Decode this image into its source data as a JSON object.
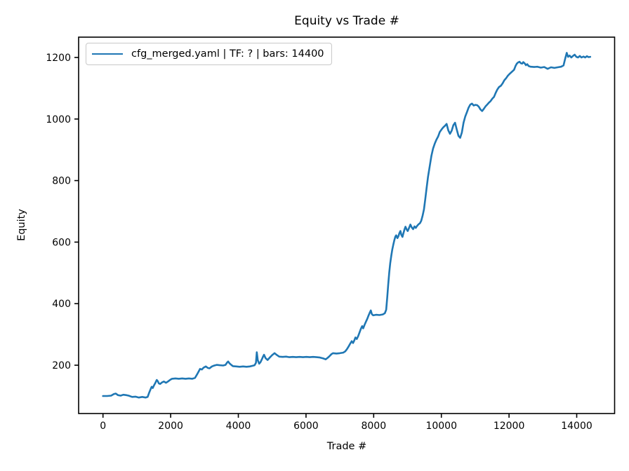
{
  "figure": {
    "background": "#ffffff",
    "text_color": "#000000"
  },
  "chart_data": {
    "type": "line",
    "title": "Equity vs Trade #",
    "xlabel": "Trade #",
    "ylabel": "Equity",
    "legend_position": "upper left",
    "grid": false,
    "legend": [
      {
        "label": "cfg_merged.yaml | TF: ? | bars: 14400",
        "color": "#1f77b4"
      }
    ],
    "xlim": [
      -720,
      15120
    ],
    "ylim": [
      43,
      1266
    ],
    "xticks": [
      0,
      2000,
      4000,
      6000,
      8000,
      10000,
      12000,
      14000
    ],
    "yticks": [
      200,
      400,
      600,
      800,
      1000,
      1200
    ],
    "series": [
      {
        "name": "cfg_merged.yaml | TF: ? | bars: 14400",
        "color": "#1f77b4",
        "points": [
          [
            0,
            100
          ],
          [
            120,
            100
          ],
          [
            240,
            101
          ],
          [
            320,
            106
          ],
          [
            380,
            108
          ],
          [
            440,
            103
          ],
          [
            520,
            101
          ],
          [
            600,
            104
          ],
          [
            680,
            103
          ],
          [
            760,
            101
          ],
          [
            860,
            97
          ],
          [
            960,
            98
          ],
          [
            1060,
            95
          ],
          [
            1160,
            97
          ],
          [
            1260,
            95
          ],
          [
            1320,
            97
          ],
          [
            1370,
            112
          ],
          [
            1410,
            123
          ],
          [
            1440,
            130
          ],
          [
            1470,
            126
          ],
          [
            1510,
            135
          ],
          [
            1550,
            143
          ],
          [
            1590,
            152
          ],
          [
            1620,
            148
          ],
          [
            1650,
            141
          ],
          [
            1690,
            139
          ],
          [
            1740,
            144
          ],
          [
            1800,
            147
          ],
          [
            1860,
            143
          ],
          [
            1920,
            147
          ],
          [
            1980,
            152
          ],
          [
            2040,
            156
          ],
          [
            2140,
            157
          ],
          [
            2240,
            156
          ],
          [
            2340,
            157
          ],
          [
            2440,
            156
          ],
          [
            2540,
            157
          ],
          [
            2640,
            156
          ],
          [
            2720,
            159
          ],
          [
            2780,
            170
          ],
          [
            2820,
            178
          ],
          [
            2870,
            188
          ],
          [
            2920,
            186
          ],
          [
            2970,
            192
          ],
          [
            3040,
            196
          ],
          [
            3100,
            191
          ],
          [
            3150,
            190
          ],
          [
            3220,
            196
          ],
          [
            3290,
            199
          ],
          [
            3360,
            201
          ],
          [
            3450,
            200
          ],
          [
            3550,
            199
          ],
          [
            3620,
            201
          ],
          [
            3670,
            209
          ],
          [
            3700,
            212
          ],
          [
            3740,
            206
          ],
          [
            3790,
            201
          ],
          [
            3840,
            197
          ],
          [
            3940,
            196
          ],
          [
            4040,
            195
          ],
          [
            4140,
            196
          ],
          [
            4240,
            195
          ],
          [
            4340,
            196
          ],
          [
            4420,
            198
          ],
          [
            4480,
            200
          ],
          [
            4520,
            208
          ],
          [
            4545,
            242
          ],
          [
            4575,
            216
          ],
          [
            4615,
            205
          ],
          [
            4655,
            210
          ],
          [
            4695,
            219
          ],
          [
            4725,
            227
          ],
          [
            4760,
            234
          ],
          [
            4805,
            223
          ],
          [
            4865,
            217
          ],
          [
            4930,
            225
          ],
          [
            5000,
            233
          ],
          [
            5070,
            239
          ],
          [
            5140,
            233
          ],
          [
            5210,
            228
          ],
          [
            5310,
            227
          ],
          [
            5410,
            228
          ],
          [
            5510,
            226
          ],
          [
            5610,
            227
          ],
          [
            5710,
            226
          ],
          [
            5810,
            227
          ],
          [
            5910,
            226
          ],
          [
            6010,
            227
          ],
          [
            6110,
            226
          ],
          [
            6210,
            227
          ],
          [
            6310,
            226
          ],
          [
            6410,
            225
          ],
          [
            6510,
            222
          ],
          [
            6580,
            219
          ],
          [
            6640,
            224
          ],
          [
            6700,
            230
          ],
          [
            6750,
            236
          ],
          [
            6800,
            239
          ],
          [
            6900,
            238
          ],
          [
            7000,
            239
          ],
          [
            7100,
            241
          ],
          [
            7160,
            245
          ],
          [
            7210,
            252
          ],
          [
            7260,
            261
          ],
          [
            7310,
            271
          ],
          [
            7350,
            278
          ],
          [
            7390,
            272
          ],
          [
            7430,
            281
          ],
          [
            7460,
            290
          ],
          [
            7500,
            285
          ],
          [
            7540,
            294
          ],
          [
            7580,
            306
          ],
          [
            7620,
            318
          ],
          [
            7660,
            327
          ],
          [
            7690,
            320
          ],
          [
            7730,
            331
          ],
          [
            7770,
            341
          ],
          [
            7810,
            351
          ],
          [
            7850,
            362
          ],
          [
            7890,
            372
          ],
          [
            7915,
            378
          ],
          [
            7945,
            366
          ],
          [
            7985,
            362
          ],
          [
            8070,
            364
          ],
          [
            8170,
            363
          ],
          [
            8270,
            365
          ],
          [
            8330,
            369
          ],
          [
            8370,
            380
          ],
          [
            8400,
            420
          ],
          [
            8430,
            462
          ],
          [
            8460,
            502
          ],
          [
            8490,
            532
          ],
          [
            8520,
            556
          ],
          [
            8550,
            576
          ],
          [
            8580,
            592
          ],
          [
            8610,
            606
          ],
          [
            8640,
            618
          ],
          [
            8665,
            622
          ],
          [
            8700,
            613
          ],
          [
            8730,
            619
          ],
          [
            8760,
            629
          ],
          [
            8790,
            636
          ],
          [
            8820,
            623
          ],
          [
            8850,
            617
          ],
          [
            8880,
            629
          ],
          [
            8910,
            641
          ],
          [
            8940,
            650
          ],
          [
            8975,
            641
          ],
          [
            9005,
            636
          ],
          [
            9045,
            646
          ],
          [
            9085,
            657
          ],
          [
            9125,
            648
          ],
          [
            9165,
            642
          ],
          [
            9205,
            651
          ],
          [
            9245,
            646
          ],
          [
            9285,
            653
          ],
          [
            9325,
            658
          ],
          [
            9365,
            661
          ],
          [
            9405,
            669
          ],
          [
            9445,
            686
          ],
          [
            9485,
            706
          ],
          [
            9525,
            740
          ],
          [
            9565,
            776
          ],
          [
            9605,
            812
          ],
          [
            9655,
            846
          ],
          [
            9705,
            880
          ],
          [
            9755,
            904
          ],
          [
            9805,
            920
          ],
          [
            9855,
            933
          ],
          [
            9905,
            943
          ],
          [
            9955,
            958
          ],
          [
            10005,
            966
          ],
          [
            10055,
            973
          ],
          [
            10105,
            978
          ],
          [
            10155,
            984
          ],
          [
            10205,
            963
          ],
          [
            10255,
            952
          ],
          [
            10305,
            962
          ],
          [
            10355,
            980
          ],
          [
            10405,
            988
          ],
          [
            10455,
            966
          ],
          [
            10505,
            945
          ],
          [
            10555,
            939
          ],
          [
            10605,
            956
          ],
          [
            10655,
            988
          ],
          [
            10705,
            1008
          ],
          [
            10755,
            1022
          ],
          [
            10805,
            1037
          ],
          [
            10855,
            1047
          ],
          [
            10905,
            1050
          ],
          [
            10955,
            1044
          ],
          [
            11005,
            1046
          ],
          [
            11055,
            1045
          ],
          [
            11105,
            1040
          ],
          [
            11155,
            1031
          ],
          [
            11205,
            1026
          ],
          [
            11255,
            1033
          ],
          [
            11305,
            1041
          ],
          [
            11355,
            1047
          ],
          [
            11405,
            1053
          ],
          [
            11455,
            1058
          ],
          [
            11505,
            1066
          ],
          [
            11555,
            1072
          ],
          [
            11605,
            1085
          ],
          [
            11655,
            1096
          ],
          [
            11705,
            1104
          ],
          [
            11760,
            1108
          ],
          [
            11810,
            1116
          ],
          [
            11860,
            1126
          ],
          [
            11910,
            1132
          ],
          [
            11960,
            1140
          ],
          [
            12010,
            1146
          ],
          [
            12060,
            1151
          ],
          [
            12110,
            1156
          ],
          [
            12150,
            1160
          ],
          [
            12190,
            1172
          ],
          [
            12230,
            1180
          ],
          [
            12270,
            1184
          ],
          [
            12310,
            1186
          ],
          [
            12350,
            1181
          ],
          [
            12390,
            1180
          ],
          [
            12420,
            1185
          ],
          [
            12460,
            1181
          ],
          [
            12500,
            1175
          ],
          [
            12540,
            1178
          ],
          [
            12580,
            1172
          ],
          [
            12640,
            1170
          ],
          [
            12740,
            1169
          ],
          [
            12840,
            1170
          ],
          [
            12940,
            1167
          ],
          [
            13040,
            1169
          ],
          [
            13140,
            1163
          ],
          [
            13240,
            1168
          ],
          [
            13340,
            1166
          ],
          [
            13440,
            1168
          ],
          [
            13540,
            1170
          ],
          [
            13610,
            1174
          ],
          [
            13660,
            1196
          ],
          [
            13705,
            1215
          ],
          [
            13745,
            1202
          ],
          [
            13790,
            1206
          ],
          [
            13840,
            1200
          ],
          [
            13890,
            1205
          ],
          [
            13940,
            1209
          ],
          [
            13990,
            1202
          ],
          [
            14040,
            1200
          ],
          [
            14090,
            1205
          ],
          [
            14140,
            1200
          ],
          [
            14200,
            1203
          ],
          [
            14250,
            1200
          ],
          [
            14300,
            1204
          ],
          [
            14350,
            1201
          ],
          [
            14400,
            1202
          ]
        ]
      }
    ]
  }
}
